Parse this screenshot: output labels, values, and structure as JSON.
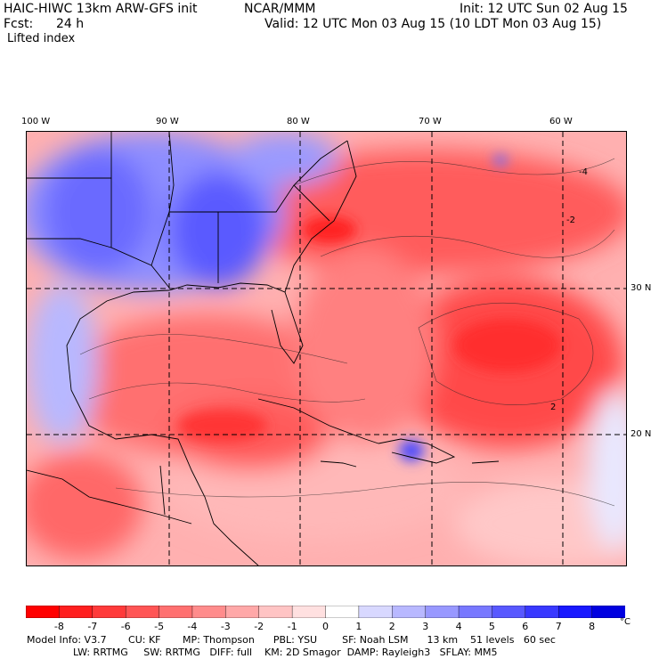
{
  "header": {
    "model_title": "HAIC-HIWC 13km ARW-GFS init",
    "org": "NCAR/MMM",
    "init": "Init: 12 UTC Sun 02 Aug 15",
    "fcst_label": "Fcst:",
    "fcst_value": "24 h",
    "valid": "Valid: 12 UTC Mon 03 Aug 15 (10 LDT Mon 03 Aug 15)",
    "field": "Lifted index"
  },
  "map": {
    "lon_labels": [
      "100 W",
      "90 W",
      "80 W",
      "70 W",
      "60 W"
    ],
    "lat_labels": [
      "30 N",
      "20 N"
    ],
    "region": "Gulf of Mexico / Caribbean / Western Atlantic",
    "contour_labels": [
      "-4",
      "-2",
      "2"
    ]
  },
  "colorbar": {
    "ticks": [
      "-8",
      "-7",
      "-6",
      "-5",
      "-4",
      "-3",
      "-2",
      "-1",
      "0",
      "1",
      "2",
      "3",
      "4",
      "5",
      "6",
      "7",
      "8"
    ],
    "unit": "°C",
    "colors": [
      "#ff0000",
      "#ff1f1f",
      "#ff3a3a",
      "#ff5555",
      "#ff7070",
      "#ff8c8c",
      "#ffa8a8",
      "#ffc4c4",
      "#ffe0e0",
      "#ffffff",
      "#d8d8ff",
      "#b8b8ff",
      "#9898ff",
      "#7878ff",
      "#5858ff",
      "#3838ff",
      "#1818ff",
      "#0000e0"
    ]
  },
  "model_info": {
    "line1": "Model Info: V3.7       CU: KF       MP: Thompson      PBL: YSU        SF: Noah LSM      13 km    51 levels   60 sec",
    "line2": "LW: RRTMG     SW: RRTMG   DIFF: full    KM: 2D Smagor  DAMP: Rayleigh3   SFLAY: MM5"
  }
}
